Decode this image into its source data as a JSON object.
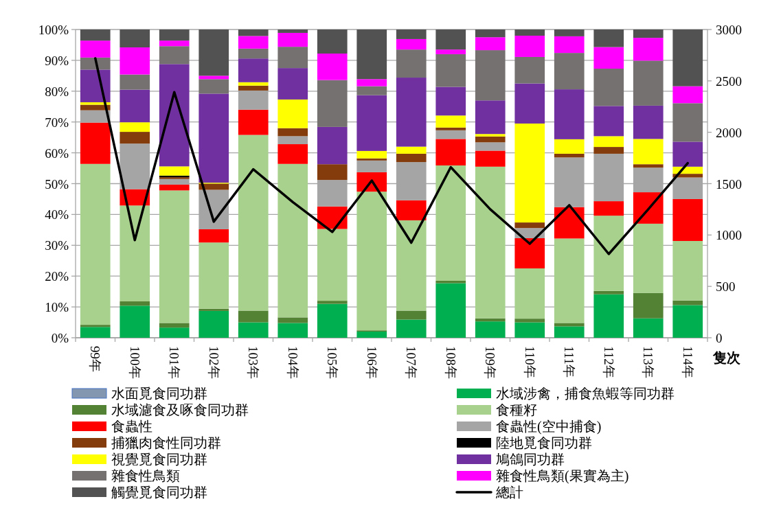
{
  "chart_data": {
    "type": "bar",
    "stacked": true,
    "grid": "y",
    "legend": "bottom",
    "y2label": "隻次",
    "categories": [
      "99年",
      "100年",
      "101年",
      "102年",
      "103年",
      "104年",
      "105年",
      "106年",
      "107年",
      "108年",
      "109年",
      "110年",
      "111年",
      "112年",
      "113年",
      "114年"
    ],
    "ylim": [
      0,
      100
    ],
    "yticks": [
      {
        "value": 0,
        "label": "0%"
      },
      {
        "value": 10,
        "label": "10%"
      },
      {
        "value": 20,
        "label": "20%"
      },
      {
        "value": 30,
        "label": "30%"
      },
      {
        "value": 40,
        "label": "40%"
      },
      {
        "value": 50,
        "label": "50%"
      },
      {
        "value": 60,
        "label": "60%"
      },
      {
        "value": 70,
        "label": "70%"
      },
      {
        "value": 80,
        "label": "80%"
      },
      {
        "value": 90,
        "label": "90%"
      },
      {
        "value": 100,
        "label": "100%"
      }
    ],
    "y2lim": [
      0,
      3000
    ],
    "y2ticks": [
      0,
      500,
      1000,
      1500,
      2000,
      2500,
      3000
    ],
    "series": [
      {
        "name": "水面覓食同功群",
        "color": "#8497b0",
        "values": [
          0,
          0,
          0,
          0,
          0,
          0,
          0,
          0,
          0,
          0,
          0,
          0,
          0,
          0,
          0,
          0
        ]
      },
      {
        "name": "水域涉禽，捕食魚蝦等同功群",
        "color": "#00b050",
        "values": [
          3.5,
          10.4,
          3.3,
          8.7,
          5.0,
          4.8,
          11.0,
          2.0,
          5.9,
          17.7,
          5.3,
          5.0,
          3.7,
          14.1,
          6.3,
          10.6
        ]
      },
      {
        "name": "水域濾食及啄食同功群",
        "color": "#548235",
        "values": [
          0.7,
          1.4,
          1.5,
          0.7,
          3.8,
          1.8,
          1.0,
          0.4,
          2.9,
          0.8,
          1.0,
          1.2,
          1.1,
          1.1,
          8.2,
          1.5
        ]
      },
      {
        "name": "食種籽",
        "color": "#a9d18e",
        "values": [
          52.2,
          31.1,
          43.0,
          21.5,
          57.0,
          49.8,
          23.3,
          45.0,
          29.3,
          37.4,
          49.2,
          16.3,
          27.4,
          24.4,
          22.5,
          19.3
        ]
      },
      {
        "name": "食蟲性",
        "color": "#ff0000",
        "values": [
          13.4,
          5.3,
          1.9,
          4.3,
          8.2,
          6.4,
          7.3,
          6.3,
          6.5,
          8.6,
          5.2,
          9.8,
          10.2,
          4.7,
          10.2,
          13.6
        ]
      },
      {
        "name": "食蟲性(空中捕食)",
        "color": "#a5a5a5",
        "values": [
          4.0,
          14.8,
          1.8,
          12.8,
          6.2,
          2.6,
          8.6,
          3.8,
          12.4,
          2.8,
          2.7,
          3.3,
          16.1,
          15.4,
          8.0,
          7.0
        ]
      },
      {
        "name": "捕獵肉食性同功群",
        "color": "#843c0c",
        "values": [
          1.8,
          3.8,
          0.6,
          2.0,
          1.6,
          2.6,
          5.1,
          0.7,
          2.7,
          0.9,
          1.9,
          1.8,
          1.2,
          2.2,
          1.1,
          1.2
        ]
      },
      {
        "name": "陸地覓食同功群",
        "color": "#000000",
        "values": [
          0,
          0,
          0.5,
          0,
          0,
          0,
          0,
          0,
          0,
          0,
          0,
          0,
          0,
          0,
          0,
          0
        ]
      },
      {
        "name": "視覺覓食同功群",
        "color": "#ffff00",
        "values": [
          0.8,
          3.1,
          3.0,
          0.3,
          1.1,
          9.3,
          0,
          2.4,
          2.3,
          3.9,
          0.8,
          32.1,
          4.7,
          3.5,
          8.2,
          2.3
        ]
      },
      {
        "name": "鳩鴿同功群",
        "color": "#7030a0",
        "values": [
          10.6,
          10.6,
          33.2,
          28.9,
          7.7,
          10.2,
          12.1,
          18.1,
          22.4,
          9.3,
          10.9,
          13.0,
          16.2,
          9.8,
          10.8,
          8.1
        ]
      },
      {
        "name": "雜食性鳥類",
        "color": "#767171",
        "values": [
          3.9,
          4.9,
          5.8,
          4.7,
          3.2,
          6.9,
          15.2,
          2.9,
          9.1,
          10.6,
          16.3,
          8.6,
          11.8,
          12.1,
          14.6,
          12.5
        ]
      },
      {
        "name": "雜食性鳥類(果實為主)",
        "color": "#ff00ff",
        "values": [
          5.5,
          8.8,
          1.8,
          1.1,
          4.1,
          4.5,
          8.6,
          2.3,
          3.4,
          1.5,
          4.2,
          6.9,
          5.4,
          7.0,
          7.4,
          5.5
        ]
      },
      {
        "name": "觸覺覓食同功群",
        "color": "#525252",
        "values": [
          3.6,
          5.8,
          3.6,
          15.0,
          2.1,
          1.1,
          7.8,
          16.1,
          3.1,
          6.5,
          2.5,
          2.0,
          2.2,
          5.7,
          2.7,
          18.4
        ]
      },
      {
        "name": "總計",
        "color": "#000000",
        "type": "line",
        "axis": "y2",
        "values": [
          2720,
          950,
          2390,
          1130,
          1640,
          1320,
          1030,
          1530,
          925,
          1660,
          1250,
          915,
          1290,
          815,
          1250,
          1700
        ]
      }
    ]
  }
}
